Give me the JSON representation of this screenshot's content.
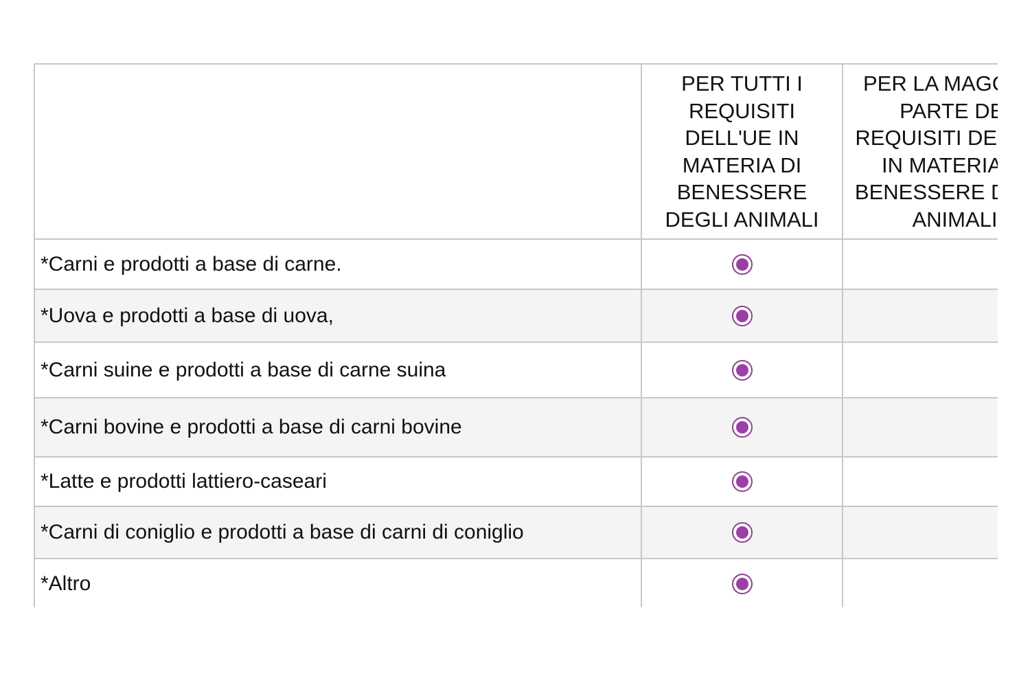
{
  "accent_color": "#9b3fa6",
  "columns": [
    "",
    "PER TUTTI I REQUISITI DELL'UE IN MATERIA DI BENESSERE DEGLI ANIMALI",
    "PER LA MAGGIOR PARTE DEI REQUISITI DELL'UE IN MATERIA DI BENESSERE DEGLI ANIMALI"
  ],
  "rows": [
    {
      "label": "*Carni e prodotti a base di carne.",
      "selected": 1
    },
    {
      "label": "*Uova e prodotti a base di uova,",
      "selected": 1
    },
    {
      "label": "*Carni suine e prodotti a base di carne suina",
      "selected": 1
    },
    {
      "label": "*Carni bovine e prodotti a base di carni bovine",
      "selected": 1
    },
    {
      "label": "*Latte e prodotti lattiero-caseari",
      "selected": 1
    },
    {
      "label": "*Carni di coniglio e prodotti a base di carni di coniglio",
      "selected": 1
    },
    {
      "label": "*Altro",
      "selected": 1
    }
  ]
}
